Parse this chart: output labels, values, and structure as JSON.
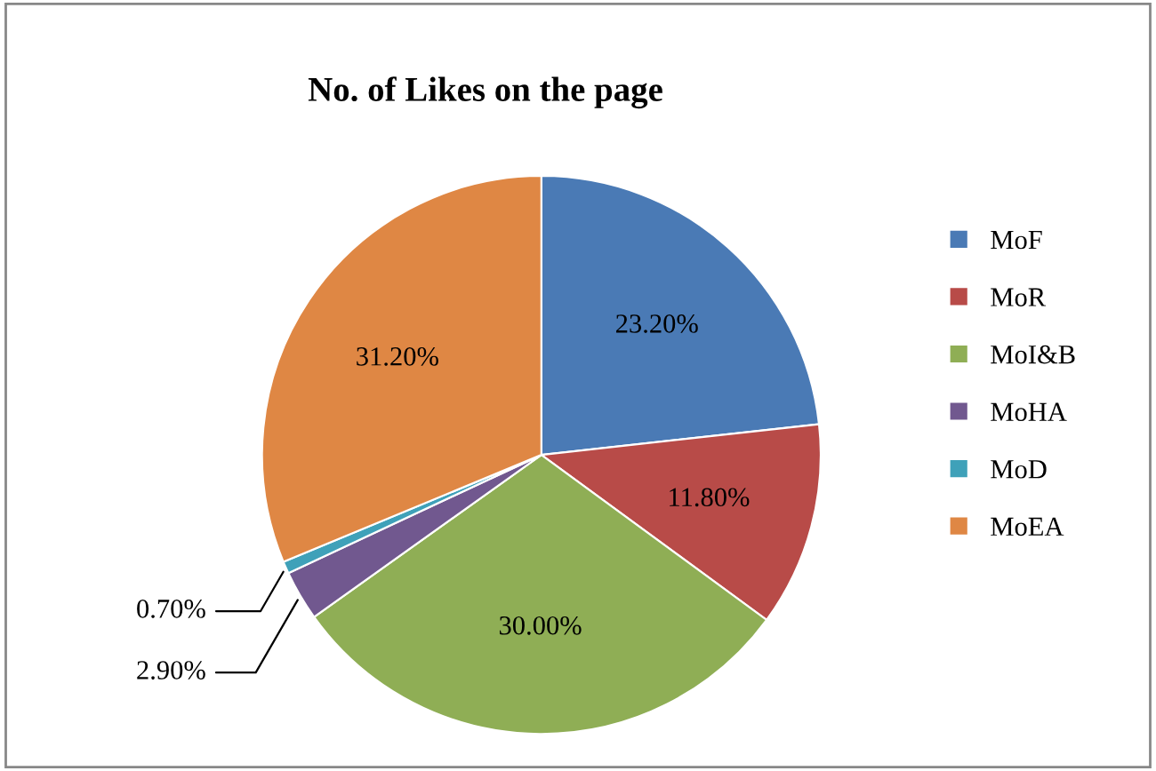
{
  "chart_data": {
    "type": "pie",
    "title": "No. of Likes on the page",
    "categories": [
      "MoF",
      "MoR",
      "MoI&B",
      "MoHA",
      "MoD",
      "MoEA"
    ],
    "values": [
      23.2,
      11.8,
      30.0,
      2.9,
      0.7,
      31.2
    ],
    "value_labels": [
      "23.20%",
      "11.80%",
      "30.00%",
      "2.90%",
      "0.70%",
      "31.20%"
    ],
    "colors": [
      "#4a7ab5",
      "#b84b48",
      "#8fae55",
      "#71588f",
      "#3fa1b9",
      "#df8744"
    ],
    "legend": "right"
  }
}
